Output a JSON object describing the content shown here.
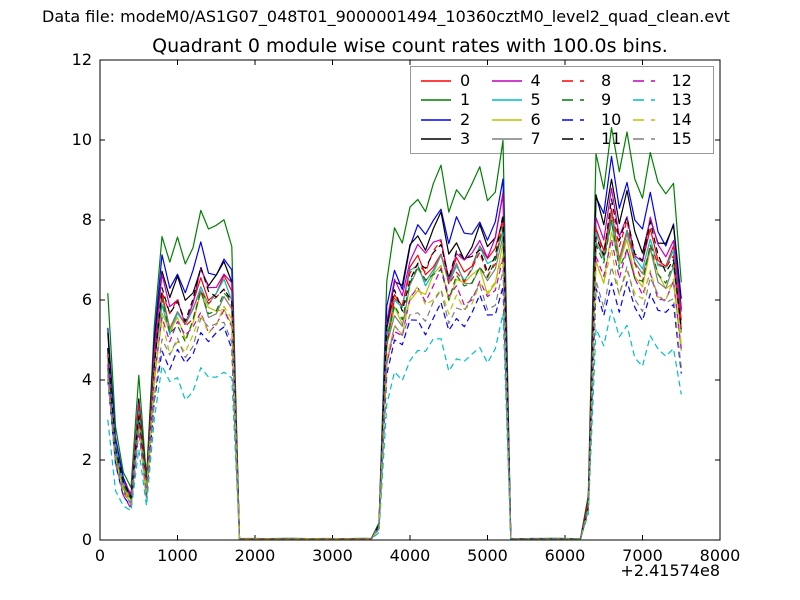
{
  "figure": {
    "datafile_label": "Data file: modeM0/AS1G07_048T01_9000001494_10360cztM0_level2_quad_clean.evt"
  },
  "chart_data": {
    "type": "line",
    "title": "Quadrant 0 module wise count rates with 100.0s bins.",
    "xlabel": "",
    "ylabel": "",
    "x_offset_label": "+2.41574e8",
    "xlim": [
      0,
      8000
    ],
    "ylim": [
      0,
      12
    ],
    "xticks": [
      0,
      1000,
      2000,
      3000,
      4000,
      5000,
      6000,
      7000,
      8000
    ],
    "yticks": [
      0,
      2,
      4,
      6,
      8,
      10,
      12
    ],
    "grid": false,
    "legend": {
      "ncol": 4,
      "position": "upper center-right",
      "fill_order": "column-major"
    },
    "x": [
      100,
      200,
      300,
      400,
      500,
      600,
      700,
      800,
      900,
      1000,
      1100,
      1200,
      1300,
      1400,
      1500,
      1600,
      1700,
      1800,
      1900,
      2000,
      2100,
      2200,
      2300,
      2400,
      2500,
      2600,
      2700,
      2800,
      2900,
      3000,
      3100,
      3200,
      3300,
      3400,
      3500,
      3600,
      3700,
      3800,
      3900,
      4000,
      4100,
      4200,
      4300,
      4400,
      4500,
      4600,
      4700,
      4800,
      4900,
      5000,
      5100,
      5200,
      5300,
      5400,
      5500,
      5600,
      5700,
      5800,
      5900,
      6000,
      6100,
      6200,
      6300,
      6400,
      6500,
      6600,
      6700,
      6800,
      6900,
      7000,
      7100,
      7200,
      7300,
      7400,
      7500
    ],
    "base_rate": [
      4.9,
      2.3,
      1.4,
      1.05,
      3.3,
      1.3,
      4.6,
      6.4,
      5.7,
      6.1,
      5.6,
      6.0,
      6.7,
      6.2,
      6.3,
      6.6,
      6.2,
      0.03,
      0.03,
      0.03,
      0.03,
      0.03,
      0.03,
      0.03,
      0.03,
      0.03,
      0.03,
      0.03,
      0.03,
      0.03,
      0.03,
      0.03,
      0.03,
      0.03,
      0.03,
      0.35,
      5.3,
      6.3,
      6.0,
      6.9,
      7.2,
      6.9,
      7.3,
      7.6,
      6.7,
      7.2,
      6.9,
      7.1,
      7.5,
      7.0,
      7.3,
      8.3,
      0.03,
      0.03,
      0.03,
      0.03,
      0.03,
      0.03,
      0.03,
      0.03,
      0.03,
      0.03,
      0.9,
      8.0,
      7.4,
      8.6,
      7.5,
      8.2,
      7.3,
      7.0,
      7.9,
      7.2,
      7.0,
      7.4,
      5.5
    ],
    "series": [
      {
        "name": "0",
        "color": "#ff0000",
        "linestyle": "solid",
        "level": 0.97
      },
      {
        "name": "1",
        "color": "#007f00",
        "linestyle": "solid",
        "level": 1.22
      },
      {
        "name": "2",
        "color": "#0000ff",
        "linestyle": "solid",
        "level": 1.09
      },
      {
        "name": "3",
        "color": "#000000",
        "linestyle": "solid",
        "level": 1.05
      },
      {
        "name": "4",
        "color": "#bf00bf",
        "linestyle": "solid",
        "level": 1.01
      },
      {
        "name": "5",
        "color": "#00bfbf",
        "linestyle": "solid",
        "level": 0.95
      },
      {
        "name": "6",
        "color": "#bfbf00",
        "linestyle": "solid",
        "level": 0.9
      },
      {
        "name": "7",
        "color": "#7f7f7f",
        "linestyle": "solid",
        "level": 0.93
      },
      {
        "name": "8",
        "color": "#ff0000",
        "linestyle": "dashed",
        "level": 0.96
      },
      {
        "name": "9",
        "color": "#007f00",
        "linestyle": "dashed",
        "level": 0.92
      },
      {
        "name": "10",
        "color": "#0000ff",
        "linestyle": "dashed",
        "level": 0.78
      },
      {
        "name": "11",
        "color": "#000000",
        "linestyle": "dashed",
        "level": 0.98
      },
      {
        "name": "12",
        "color": "#bf00bf",
        "linestyle": "dashed",
        "level": 0.87
      },
      {
        "name": "13",
        "color": "#00bfbf",
        "linestyle": "dashed",
        "level": 0.655
      },
      {
        "name": "14",
        "color": "#bfbf00",
        "linestyle": "dashed",
        "level": 0.85
      },
      {
        "name": "15",
        "color": "#7f7f7f",
        "linestyle": "dashed",
        "level": 0.82
      }
    ]
  }
}
